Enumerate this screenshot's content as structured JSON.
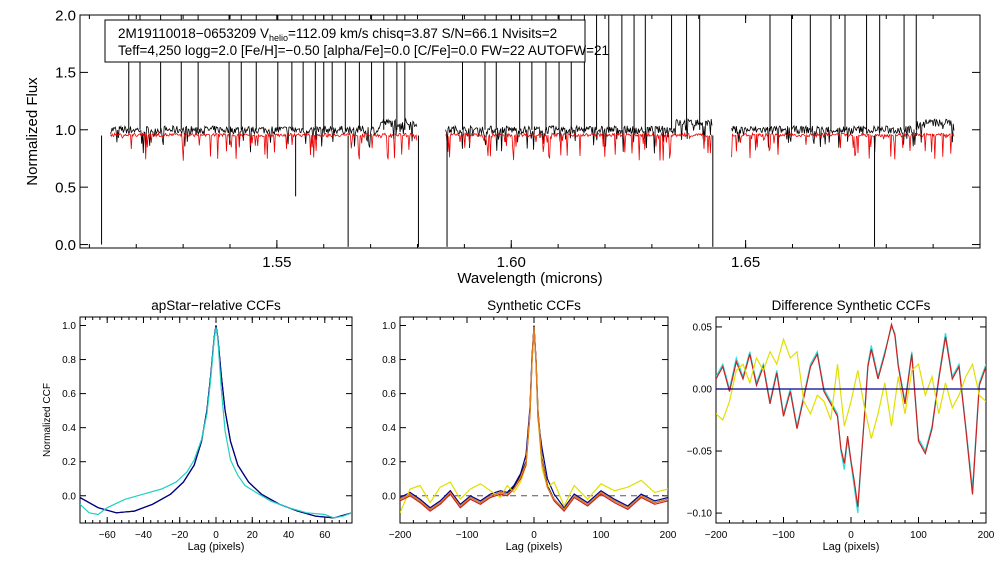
{
  "spectrum": {
    "info_line1_prefix": "2M19110018−0653209  V",
    "info_line1_sub": "helio",
    "info_line1_rest": "=112.09 km/s  chisq=3.87  S/N=66.1  Nvisits=2",
    "info_line2": "Teff=4,250 logg=2.0 [Fe/H]=−0.50 [alpha/Fe]=0.0 [C/Fe]=0.0 FW=22 AUTOFW=21"
  },
  "chart_data": [
    {
      "id": "spectrum",
      "type": "line",
      "title": "",
      "xlabel": "Wavelength (microns)",
      "ylabel": "Normalized Flux",
      "xlim": [
        1.508,
        1.7
      ],
      "ylim": [
        -0.03,
        2.0
      ],
      "xticks": [
        1.55,
        1.6,
        1.65
      ],
      "xtick_labels": [
        "1.55",
        "1.60",
        "1.65"
      ],
      "yticks": [
        0.0,
        0.5,
        1.0,
        1.5,
        2.0
      ],
      "ytick_labels": [
        "0.0",
        "0.5",
        "1.0",
        "1.5",
        "2.0"
      ],
      "chips": [
        [
          1.5145,
          1.58
        ],
        [
          1.586,
          1.643
        ],
        [
          1.647,
          1.6945
        ]
      ],
      "gaps": [
        [
          1.58,
          1.586
        ],
        [
          1.643,
          1.647
        ]
      ],
      "series": [
        {
          "name": "observed spectrum",
          "color": "#000000",
          "continuum": 1.0,
          "noise": 0.035
        },
        {
          "name": "best-fit synthetic",
          "color": "#ee0000",
          "continuum": 0.955,
          "noise": 0.015
        }
      ],
      "spikes_up": [
        1.5184,
        1.5208,
        1.5252,
        1.5296,
        1.5332,
        1.5398,
        1.5424,
        1.5456,
        1.5502,
        1.5532,
        1.5556,
        1.5582,
        1.56,
        1.5618,
        1.5646,
        1.5676,
        1.5702,
        1.5728,
        1.5756,
        1.5773,
        1.5896,
        1.5944,
        1.5968,
        1.6018,
        1.6044,
        1.6074,
        1.6102,
        1.6128,
        1.6156,
        1.6182,
        1.6208,
        1.6236,
        1.6262,
        1.6286,
        1.6342,
        1.6374,
        1.6402,
        1.6552,
        1.6598,
        1.6638,
        1.6682,
        1.6712,
        1.6758,
        1.6786,
        1.6838,
        1.6864
      ],
      "spikes_down": [
        {
          "x": 1.5126,
          "y": 0.0
        },
        {
          "x": 1.554,
          "y": 0.42
        },
        {
          "x": 1.5652,
          "y": -0.02
        },
        {
          "x": 1.5802,
          "y": -0.02
        },
        {
          "x": 1.5863,
          "y": -0.02
        },
        {
          "x": 1.643,
          "y": -0.02
        },
        {
          "x": 1.6775,
          "y": -0.02
        }
      ]
    },
    {
      "id": "ccf1",
      "type": "line",
      "title": "apStar−relative CCFs",
      "xlabel": "Lag (pixels)",
      "ylabel": "Normalized CCF",
      "xlim": [
        -75,
        75
      ],
      "ylim": [
        -0.16,
        1.05
      ],
      "xticks": [
        -60,
        -40,
        -20,
        0,
        20,
        40,
        60
      ],
      "xtick_labels": [
        "−60",
        "−40",
        "−20",
        "0",
        "20",
        "40",
        "60"
      ],
      "yticks": [
        0.0,
        0.2,
        0.4,
        0.6,
        0.8,
        1.0
      ],
      "ytick_labels": [
        "0.0",
        "0.2",
        "0.4",
        "0.6",
        "0.8",
        "1.0"
      ],
      "series": [
        {
          "name": "visit 1",
          "color": "#000000",
          "x": [
            -75,
            -65,
            -55,
            -45,
            -35,
            -25,
            -18,
            -12,
            -8,
            -5,
            -3,
            -1,
            0,
            1,
            3,
            5,
            8,
            12,
            18,
            25,
            35,
            45,
            55,
            65,
            75
          ],
          "y": [
            -0.01,
            -0.07,
            -0.1,
            -0.09,
            -0.05,
            0.01,
            0.08,
            0.18,
            0.32,
            0.5,
            0.7,
            0.93,
            1.0,
            0.93,
            0.7,
            0.5,
            0.32,
            0.18,
            0.08,
            0.01,
            -0.05,
            -0.09,
            -0.12,
            -0.13,
            -0.1
          ]
        },
        {
          "name": "visit 2",
          "color": "#00008b",
          "x": [
            -75,
            -65,
            -55,
            -45,
            -35,
            -25,
            -18,
            -12,
            -8,
            -5,
            -3,
            -1,
            0,
            1,
            3,
            5,
            8,
            12,
            18,
            25,
            35,
            45,
            55,
            65,
            75
          ],
          "y": [
            -0.01,
            -0.07,
            -0.1,
            -0.09,
            -0.05,
            0.01,
            0.08,
            0.18,
            0.32,
            0.5,
            0.7,
            0.93,
            1.0,
            0.93,
            0.7,
            0.5,
            0.32,
            0.18,
            0.08,
            0.01,
            -0.05,
            -0.09,
            -0.12,
            -0.13,
            -0.1
          ]
        },
        {
          "name": "combined",
          "color": "#20d0c0",
          "x": [
            -75,
            -70,
            -65,
            -60,
            -50,
            -40,
            -30,
            -22,
            -16,
            -12,
            -8,
            -5,
            -3,
            -1,
            0,
            1,
            3,
            5,
            8,
            12,
            16,
            22,
            30,
            40,
            50,
            60,
            65,
            70,
            75
          ],
          "y": [
            -0.05,
            -0.1,
            -0.11,
            -0.07,
            -0.02,
            0.01,
            0.04,
            0.08,
            0.14,
            0.21,
            0.33,
            0.48,
            0.68,
            0.92,
            0.99,
            0.92,
            0.62,
            0.38,
            0.21,
            0.12,
            0.06,
            0.02,
            -0.03,
            -0.07,
            -0.1,
            -0.11,
            -0.13,
            -0.12,
            -0.1
          ]
        }
      ]
    },
    {
      "id": "ccf2",
      "type": "line",
      "title": "Synthetic CCFs",
      "xlabel": "Lag (pixels)",
      "ylabel": "",
      "xlim": [
        -200,
        200
      ],
      "ylim": [
        -0.16,
        1.05
      ],
      "xticks": [
        -200,
        -100,
        0,
        100,
        200
      ],
      "xtick_labels": [
        "−200",
        "−100",
        "0",
        "100",
        "200"
      ],
      "yticks": [
        0.0,
        0.2,
        0.4,
        0.6,
        0.8,
        1.0
      ],
      "ytick_labels": [
        "0.0",
        "0.2",
        "0.4",
        "0.6",
        "0.8",
        "1.0"
      ],
      "zero_line": 0.0,
      "series": [
        {
          "name": "black",
          "color": "#000000",
          "x": [
            -200,
            -185,
            -170,
            -155,
            -140,
            -125,
            -110,
            -95,
            -80,
            -65,
            -50,
            -40,
            -30,
            -20,
            -12,
            -6,
            -3,
            0,
            3,
            6,
            12,
            20,
            30,
            45,
            60,
            80,
            100,
            120,
            140,
            160,
            180,
            200
          ],
          "y": [
            -0.02,
            0.01,
            -0.03,
            -0.08,
            -0.04,
            0.02,
            -0.06,
            -0.01,
            -0.04,
            0.0,
            0.02,
            0.01,
            0.05,
            0.12,
            0.2,
            0.5,
            0.8,
            1.0,
            0.8,
            0.5,
            0.22,
            0.06,
            -0.02,
            -0.08,
            0.0,
            -0.05,
            0.02,
            -0.03,
            -0.07,
            0.0,
            -0.04,
            -0.02
          ]
        },
        {
          "name": "blue",
          "color": "#00008b",
          "x": [
            -200,
            -185,
            -170,
            -155,
            -140,
            -125,
            -110,
            -95,
            -80,
            -65,
            -50,
            -40,
            -30,
            -20,
            -12,
            -6,
            -3,
            0,
            3,
            6,
            12,
            20,
            30,
            45,
            60,
            80,
            100,
            120,
            140,
            160,
            180,
            200
          ],
          "y": [
            -0.01,
            0.02,
            -0.02,
            -0.07,
            -0.03,
            0.03,
            -0.05,
            0.0,
            -0.03,
            0.01,
            0.03,
            0.02,
            0.06,
            0.13,
            0.24,
            0.52,
            0.82,
            0.99,
            0.8,
            0.45,
            0.28,
            0.1,
            0.01,
            -0.07,
            0.01,
            -0.04,
            0.03,
            -0.02,
            -0.06,
            0.01,
            -0.03,
            -0.01
          ]
        },
        {
          "name": "yellow",
          "color": "#e0e000",
          "x": [
            -200,
            -185,
            -170,
            -155,
            -140,
            -125,
            -110,
            -95,
            -80,
            -65,
            -50,
            -40,
            -30,
            -20,
            -12,
            -6,
            -3,
            0,
            3,
            6,
            12,
            20,
            30,
            45,
            60,
            80,
            100,
            120,
            140,
            160,
            180,
            200
          ],
          "y": [
            -0.1,
            0.04,
            0.06,
            -0.04,
            0.05,
            0.08,
            -0.02,
            0.04,
            0.07,
            0.03,
            -0.01,
            0.06,
            0.02,
            0.08,
            0.18,
            0.48,
            0.78,
            0.98,
            0.78,
            0.46,
            0.16,
            0.05,
            0.08,
            -0.06,
            0.06,
            -0.02,
            0.07,
            0.03,
            0.05,
            0.09,
            0.02,
            0.04
          ]
        },
        {
          "name": "red",
          "color": "#cc2020",
          "x": [
            -200,
            -185,
            -170,
            -155,
            -140,
            -125,
            -110,
            -95,
            -80,
            -65,
            -50,
            -40,
            -30,
            -20,
            -12,
            -6,
            -3,
            0,
            3,
            6,
            12,
            20,
            30,
            45,
            60,
            80,
            100,
            120,
            140,
            160,
            180,
            200
          ],
          "y": [
            -0.03,
            0.0,
            -0.04,
            -0.09,
            -0.05,
            0.01,
            -0.07,
            -0.02,
            -0.05,
            -0.01,
            0.01,
            0.0,
            0.04,
            0.1,
            0.18,
            0.48,
            0.79,
            0.99,
            0.79,
            0.48,
            0.2,
            0.05,
            -0.03,
            -0.09,
            -0.01,
            -0.06,
            0.01,
            -0.04,
            -0.08,
            -0.01,
            -0.05,
            -0.03
          ]
        },
        {
          "name": "orange",
          "color": "#e08020",
          "x": [
            -200,
            -185,
            -170,
            -155,
            -140,
            -125,
            -110,
            -95,
            -80,
            -65,
            -50,
            -40,
            -30,
            -20,
            -12,
            -6,
            -3,
            0,
            3,
            6,
            12,
            20,
            30,
            45,
            60,
            80,
            100,
            120,
            140,
            160,
            180,
            200
          ],
          "y": [
            -0.02,
            0.01,
            -0.03,
            -0.08,
            -0.04,
            0.02,
            -0.06,
            -0.01,
            -0.04,
            0.0,
            0.02,
            0.01,
            0.04,
            0.11,
            0.19,
            0.49,
            0.79,
            0.99,
            0.79,
            0.49,
            0.21,
            0.05,
            -0.02,
            -0.08,
            0.0,
            -0.05,
            0.02,
            -0.03,
            -0.07,
            0.0,
            -0.04,
            -0.02
          ]
        }
      ]
    },
    {
      "id": "ccf3",
      "type": "line",
      "title": "Difference Synthetic CCFs",
      "xlabel": "Lag (pixels)",
      "ylabel": "",
      "xlim": [
        -200,
        200
      ],
      "ylim": [
        -0.108,
        0.058
      ],
      "xticks": [
        -200,
        -100,
        0,
        100,
        200
      ],
      "xtick_labels": [
        "−200",
        "−100",
        "0",
        "100",
        "200"
      ],
      "yticks": [
        -0.1,
        -0.05,
        0.0,
        0.05
      ],
      "ytick_labels": [
        "−0.10",
        "−0.05",
        "0.00",
        "0.05"
      ],
      "zero_line": 0.0,
      "series": [
        {
          "name": "cyan",
          "color": "#20e0e0",
          "x": [
            -200,
            -190,
            -180,
            -170,
            -160,
            -150,
            -140,
            -130,
            -120,
            -110,
            -100,
            -90,
            -80,
            -70,
            -60,
            -50,
            -40,
            -30,
            -20,
            -15,
            -10,
            -5,
            0,
            5,
            10,
            15,
            20,
            25,
            30,
            40,
            50,
            60,
            65,
            70,
            80,
            90,
            100,
            110,
            120,
            130,
            140,
            150,
            160,
            170,
            180,
            190,
            200
          ],
          "y": [
            0.01,
            0.02,
            0.0,
            0.025,
            0.01,
            0.03,
            0.005,
            0.02,
            -0.01,
            0.015,
            -0.02,
            0.0,
            -0.03,
            -0.005,
            0.02,
            0.03,
            0.0,
            -0.01,
            -0.02,
            -0.05,
            -0.065,
            -0.04,
            -0.06,
            -0.08,
            -0.1,
            -0.06,
            -0.02,
            0.02,
            0.035,
            0.01,
            0.03,
            0.05,
            0.045,
            0.02,
            -0.01,
            0.03,
            -0.04,
            -0.05,
            -0.03,
            0.01,
            0.045,
            0.01,
            0.02,
            -0.03,
            -0.08,
            0.005,
            0.02
          ]
        },
        {
          "name": "red",
          "color": "#cc2020",
          "x": [
            -200,
            -190,
            -180,
            -170,
            -160,
            -150,
            -140,
            -130,
            -120,
            -110,
            -100,
            -90,
            -80,
            -70,
            -60,
            -50,
            -40,
            -30,
            -20,
            -15,
            -10,
            -5,
            0,
            5,
            10,
            15,
            20,
            25,
            30,
            40,
            50,
            60,
            65,
            70,
            80,
            90,
            100,
            110,
            120,
            130,
            140,
            150,
            160,
            170,
            180,
            190,
            200
          ],
          "y": [
            0.008,
            0.018,
            -0.002,
            0.022,
            0.008,
            0.028,
            0.003,
            0.018,
            -0.012,
            0.013,
            -0.022,
            -0.002,
            -0.032,
            -0.007,
            0.018,
            0.028,
            -0.002,
            -0.012,
            -0.022,
            -0.048,
            -0.06,
            -0.038,
            -0.058,
            -0.075,
            -0.095,
            -0.058,
            -0.022,
            0.018,
            0.032,
            0.008,
            0.028,
            0.052,
            0.043,
            0.018,
            -0.012,
            0.028,
            -0.042,
            -0.052,
            -0.032,
            0.008,
            0.042,
            0.008,
            0.018,
            -0.032,
            -0.085,
            0.003,
            0.018
          ]
        },
        {
          "name": "yellow",
          "color": "#e0e000",
          "x": [
            -200,
            -190,
            -180,
            -170,
            -160,
            -150,
            -140,
            -130,
            -120,
            -110,
            -100,
            -90,
            -80,
            -70,
            -60,
            -50,
            -40,
            -30,
            -20,
            -10,
            0,
            10,
            20,
            30,
            40,
            50,
            60,
            70,
            80,
            90,
            100,
            110,
            120,
            130,
            140,
            150,
            160,
            170,
            180,
            190,
            200
          ],
          "y": [
            -0.02,
            -0.025,
            -0.01,
            0.015,
            0.02,
            0.005,
            0.025,
            0.015,
            0.03,
            0.02,
            0.04,
            0.025,
            0.03,
            -0.01,
            -0.02,
            -0.005,
            -0.01,
            -0.025,
            0.02,
            -0.03,
            -0.01,
            0.015,
            -0.015,
            -0.04,
            -0.02,
            0.005,
            -0.03,
            0.01,
            -0.02,
            0.015,
            0.02,
            -0.005,
            0.01,
            -0.02,
            0.005,
            -0.015,
            -0.005,
            0.01,
            0.02,
            -0.005,
            -0.01
          ]
        },
        {
          "name": "blue",
          "color": "#00008b",
          "x": [
            -200,
            200
          ],
          "y": [
            0.0,
            0.0
          ]
        }
      ]
    }
  ]
}
